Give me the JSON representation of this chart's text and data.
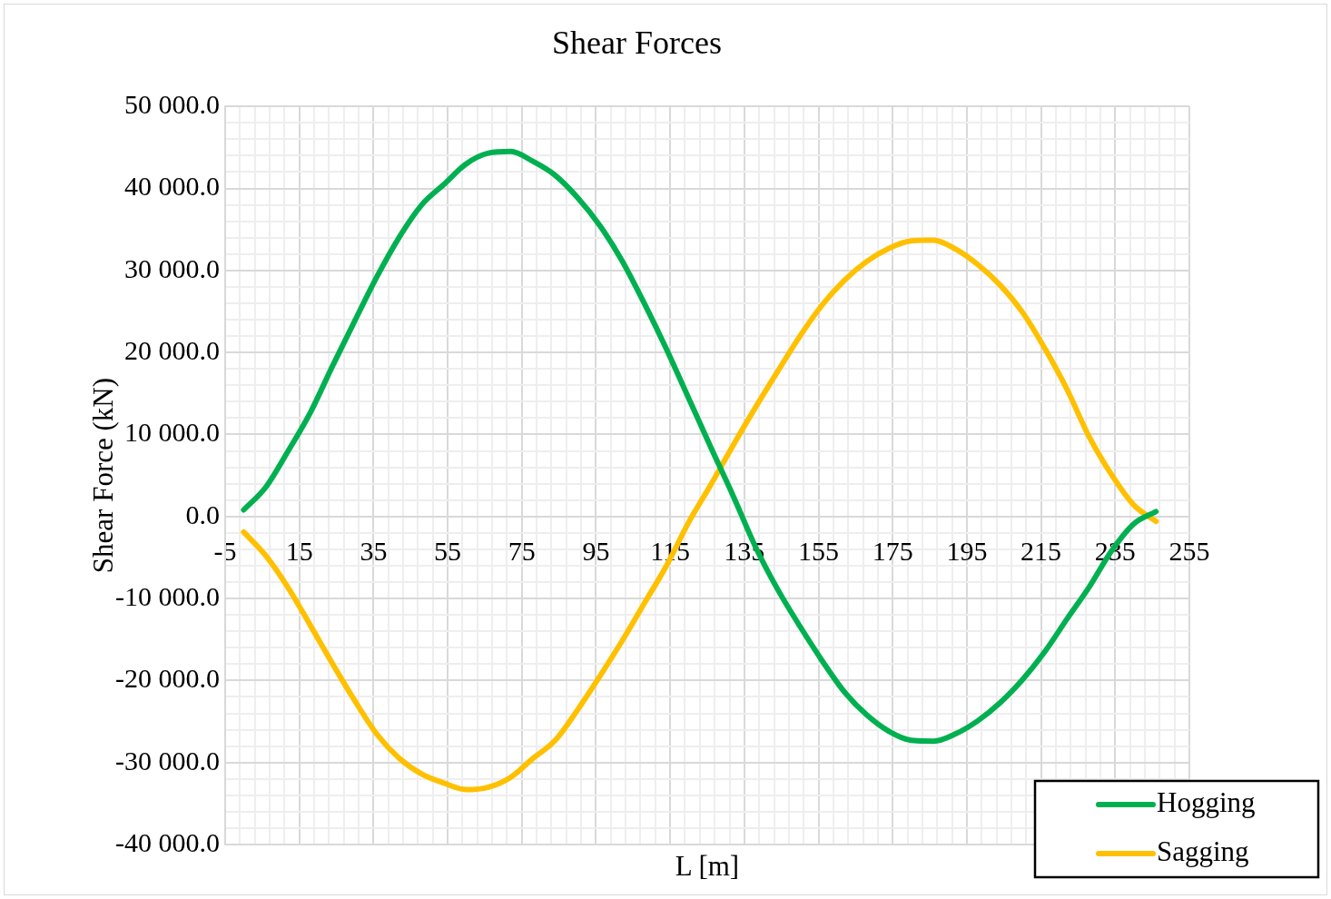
{
  "chart_data": {
    "type": "line",
    "title": "Shear Forces",
    "xlabel": "L [m]",
    "ylabel": "Shear Force (kN)",
    "x": [
      0,
      6,
      12,
      18,
      24,
      30,
      36,
      42,
      48,
      54,
      60,
      66,
      72,
      78,
      84,
      90,
      96,
      102,
      108,
      114,
      120,
      126,
      132,
      138,
      144,
      150,
      156,
      162,
      168,
      174,
      180,
      186,
      192,
      198,
      204,
      210,
      216,
      222,
      228,
      234,
      240,
      246
    ],
    "series": [
      {
        "name": "Hogging",
        "color": "#00b050",
        "values": [
          800,
          3600,
          8000,
          12700,
          18400,
          23900,
          29300,
          34100,
          38000,
          40500,
          43000,
          44300,
          44500,
          43300,
          41600,
          38900,
          35500,
          31200,
          26000,
          20400,
          14400,
          8400,
          2500,
          -3700,
          -8900,
          -13400,
          -17600,
          -21400,
          -24200,
          -26200,
          -27300,
          -27400,
          -26500,
          -24900,
          -22700,
          -19900,
          -16500,
          -12500,
          -8600,
          -4200,
          -900,
          600
        ]
      },
      {
        "name": "Sagging",
        "color": "#ffc000",
        "values": [
          -1900,
          -4800,
          -8700,
          -13300,
          -18000,
          -22500,
          -26600,
          -29500,
          -31400,
          -32500,
          -33300,
          -33000,
          -31800,
          -29500,
          -27300,
          -23600,
          -19500,
          -15200,
          -10600,
          -6000,
          -700,
          3900,
          8700,
          13300,
          17700,
          22000,
          25800,
          28800,
          31100,
          32700,
          33600,
          33700,
          32600,
          30700,
          28200,
          24900,
          20500,
          15500,
          9700,
          5100,
          1400,
          -600
        ]
      }
    ],
    "xlim": [
      -5,
      255
    ],
    "xticks": [
      -5,
      {
        "value": -1,
        "label": null
      },
      {
        "value": 3,
        "label": null
      },
      {
        "value": 7,
        "label": null
      },
      {
        "value": 11,
        "label": null
      },
      15,
      {
        "value": 19,
        "label": null
      },
      {
        "value": 23,
        "label": null
      },
      {
        "value": 27,
        "label": null
      },
      {
        "value": 31,
        "label": null
      },
      35,
      {
        "value": 39,
        "label": null
      },
      {
        "value": 43,
        "label": null
      },
      {
        "value": 47,
        "label": null
      },
      {
        "value": 51,
        "label": null
      },
      55,
      {
        "value": 59,
        "label": null
      },
      {
        "value": 63,
        "label": null
      },
      {
        "value": 67,
        "label": null
      },
      {
        "value": 71,
        "label": null
      },
      75,
      {
        "value": 79,
        "label": null
      },
      {
        "value": 83,
        "label": null
      },
      {
        "value": 87,
        "label": null
      },
      {
        "value": 91,
        "label": null
      },
      95,
      {
        "value": 99,
        "label": null
      },
      {
        "value": 103,
        "label": null
      },
      {
        "value": 107,
        "label": null
      },
      {
        "value": 111,
        "label": null
      },
      115,
      {
        "value": 119,
        "label": null
      },
      {
        "value": 123,
        "label": null
      },
      {
        "value": 127,
        "label": null
      },
      {
        "value": 131,
        "label": null
      },
      135,
      {
        "value": 139,
        "label": null
      },
      {
        "value": 143,
        "label": null
      },
      {
        "value": 147,
        "label": null
      },
      {
        "value": 151,
        "label": null
      },
      155,
      {
        "value": 159,
        "label": null
      },
      {
        "value": 163,
        "label": null
      },
      {
        "value": 167,
        "label": null
      },
      {
        "value": 171,
        "label": null
      },
      175,
      {
        "value": 179,
        "label": null
      },
      {
        "value": 183,
        "label": null
      },
      {
        "value": 187,
        "label": null
      },
      {
        "value": 191,
        "label": null
      },
      195,
      {
        "value": 199,
        "label": null
      },
      {
        "value": 203,
        "label": null
      },
      {
        "value": 207,
        "label": null
      },
      {
        "value": 211,
        "label": null
      },
      215,
      {
        "value": 219,
        "label": null
      },
      {
        "value": 223,
        "label": null
      },
      {
        "value": 227,
        "label": null
      },
      {
        "value": 231,
        "label": null
      },
      235,
      {
        "value": 239,
        "label": null
      },
      {
        "value": 243,
        "label": null
      },
      {
        "value": 247,
        "label": null
      },
      {
        "value": 251,
        "label": null
      },
      255
    ],
    "ylim": [
      -40000,
      50000
    ],
    "yticks": [
      {
        "value": -40000,
        "label": "-40 000.0"
      },
      {
        "value": -38000,
        "label": null
      },
      {
        "value": -36000,
        "label": null
      },
      {
        "value": -34000,
        "label": null
      },
      {
        "value": -32000,
        "label": null
      },
      {
        "value": -30000,
        "label": "-30 000.0"
      },
      {
        "value": -28000,
        "label": null
      },
      {
        "value": -26000,
        "label": null
      },
      {
        "value": -24000,
        "label": null
      },
      {
        "value": -22000,
        "label": null
      },
      {
        "value": -20000,
        "label": "-20 000.0"
      },
      {
        "value": -18000,
        "label": null
      },
      {
        "value": -16000,
        "label": null
      },
      {
        "value": -14000,
        "label": null
      },
      {
        "value": -12000,
        "label": null
      },
      {
        "value": -10000,
        "label": "-10 000.0"
      },
      {
        "value": -8000,
        "label": null
      },
      {
        "value": -6000,
        "label": null
      },
      {
        "value": -4000,
        "label": null
      },
      {
        "value": -2000,
        "label": null
      },
      {
        "value": 0,
        "label": "0.0"
      },
      {
        "value": 2000,
        "label": null
      },
      {
        "value": 4000,
        "label": null
      },
      {
        "value": 6000,
        "label": null
      },
      {
        "value": 8000,
        "label": null
      },
      {
        "value": 10000,
        "label": "10 000.0"
      },
      {
        "value": 12000,
        "label": null
      },
      {
        "value": 14000,
        "label": null
      },
      {
        "value": 16000,
        "label": null
      },
      {
        "value": 18000,
        "label": null
      },
      {
        "value": 20000,
        "label": "20 000.0"
      },
      {
        "value": 22000,
        "label": null
      },
      {
        "value": 24000,
        "label": null
      },
      {
        "value": 26000,
        "label": null
      },
      {
        "value": 28000,
        "label": null
      },
      {
        "value": 30000,
        "label": "30 000.0"
      },
      {
        "value": 32000,
        "label": null
      },
      {
        "value": 34000,
        "label": null
      },
      {
        "value": 36000,
        "label": null
      },
      {
        "value": 38000,
        "label": null
      },
      {
        "value": 40000,
        "label": "40 000.0"
      },
      {
        "value": 42000,
        "label": null
      },
      {
        "value": 44000,
        "label": null
      },
      {
        "value": 46000,
        "label": null
      },
      {
        "value": 48000,
        "label": null
      },
      {
        "value": 50000,
        "label": "50 000.0"
      }
    ],
    "grid": true,
    "legend": "bottom right",
    "marker": "none",
    "line_style": "solid"
  }
}
